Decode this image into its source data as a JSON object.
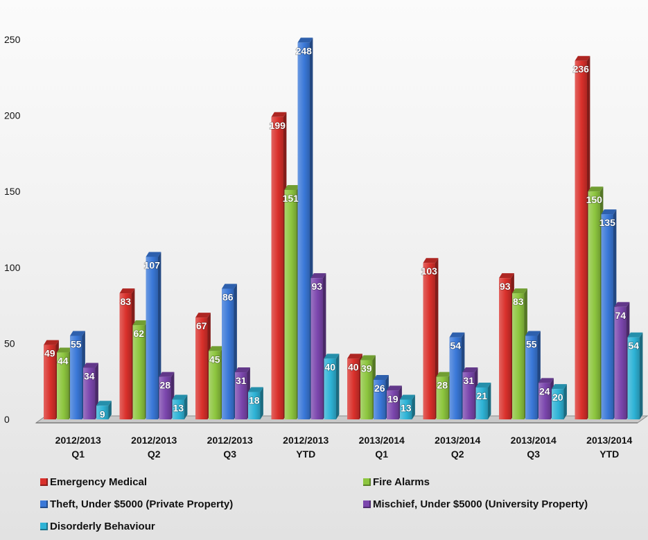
{
  "chart_data": {
    "type": "bar",
    "categories": [
      [
        "2012/2013",
        "Q1"
      ],
      [
        "2012/2013",
        "Q2"
      ],
      [
        "2012/2013",
        "Q3"
      ],
      [
        "2012/2013",
        "YTD"
      ],
      [
        "2013/2014",
        "Q1"
      ],
      [
        "2013/2014",
        "Q2"
      ],
      [
        "2013/2014",
        "Q3"
      ],
      [
        "2013/2014",
        "YTD"
      ]
    ],
    "series": [
      {
        "name": "Emergency Medical",
        "color": "#d9302b",
        "values": [
          49,
          83,
          67,
          199,
          40,
          103,
          93,
          236
        ]
      },
      {
        "name": "Fire Alarms",
        "color": "#8dc63f",
        "values": [
          44,
          62,
          45,
          151,
          39,
          28,
          83,
          150
        ]
      },
      {
        "name": "Theft, Under $5000 (Private Property)",
        "color": "#3a78d8",
        "values": [
          55,
          107,
          86,
          248,
          26,
          54,
          55,
          135
        ]
      },
      {
        "name": "Mischief, Under $5000 (University Property)",
        "color": "#7b46ad",
        "values": [
          34,
          28,
          31,
          93,
          19,
          31,
          24,
          74
        ]
      },
      {
        "name": "Disorderly Behaviour",
        "color": "#2eb3d6",
        "values": [
          9,
          13,
          18,
          40,
          13,
          21,
          20,
          54
        ]
      }
    ],
    "yticks": [
      0,
      50,
      100,
      150,
      200,
      250
    ],
    "ylim": [
      0,
      250
    ],
    "legend_position": "bottom",
    "grid": false,
    "data_labels": true,
    "style": "3d-clustered-column"
  }
}
